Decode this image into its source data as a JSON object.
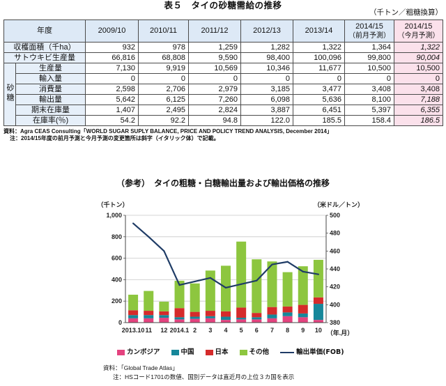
{
  "page_title": "表５　タイの砂糖需給の推移",
  "unit_note": "（千トン／粗糖換算）",
  "colors": {
    "header_bg": "#dde9f6",
    "label_bg": "#e6eff9",
    "latest_bg": "#fbe1eb",
    "border": "#4a4a4a"
  },
  "table": {
    "header_label": "年度",
    "columns": [
      {
        "year": "2009/10"
      },
      {
        "year": "2010/11"
      },
      {
        "year": "2011/12"
      },
      {
        "year": "2012/13"
      },
      {
        "year": "2013/14"
      },
      {
        "year": "2014/15",
        "sub": "（前月予測）"
      },
      {
        "year": "2014/15",
        "sub": "（今月予測）"
      }
    ],
    "rows": [
      {
        "label": "収穫面積（千ha）",
        "values": [
          "932",
          "978",
          "1,259",
          "1,282",
          "1,322",
          "1,364",
          "1,322"
        ],
        "latest_italic": true
      },
      {
        "label": "サトウキビ生産量",
        "values": [
          "66,816",
          "68,808",
          "9,590",
          "98,400",
          "100,096",
          "99,800",
          "90,004"
        ],
        "latest_italic": true
      }
    ],
    "group_label": "砂糖",
    "sugar_rows": [
      {
        "label": "生産量",
        "values": [
          "7,130",
          "9,919",
          "10,569",
          "10,346",
          "11,677",
          "10,500",
          "10,500"
        ],
        "latest_italic": false
      },
      {
        "label": "輸入量",
        "values": [
          "0",
          "0",
          "0",
          "0",
          "0",
          "0",
          "0"
        ],
        "latest_italic": false
      },
      {
        "label": "消費量",
        "values": [
          "2,598",
          "2,706",
          "2,979",
          "3,185",
          "3,477",
          "3,408",
          "3,408"
        ],
        "latest_italic": false
      },
      {
        "label": "輸出量",
        "values": [
          "5,642",
          "6,125",
          "7,260",
          "6,098",
          "5,636",
          "8,100",
          "7,188"
        ],
        "latest_italic": true
      },
      {
        "label": "期末在庫量",
        "values": [
          "1,407",
          "2,495",
          "2,824",
          "3,887",
          "6,451",
          "5,397",
          "6,355"
        ],
        "latest_italic": true
      },
      {
        "label": "在庫率(％)",
        "values": [
          "54.2",
          "92.2",
          "94.8",
          "122.0",
          "185.5",
          "158.4",
          "186.5"
        ],
        "latest_italic": true
      }
    ]
  },
  "table_notes": {
    "source": "資料：Agra CEAS Consulting「WORLD SUGAR SUPLY BALANCE, PRICE AND POLICY TREND ANALYSIS, December 2014」",
    "note": "注：2014/15年度の前月予測と今月予測の変更箇所は斜字（イタリック体）で記載。"
  },
  "chart_data": {
    "type": "bar",
    "stacked": true,
    "title": "（参考）　タイの粗糖・白糖輸出量および輸出価格の推移",
    "categories": [
      "2013.10",
      "11",
      "12",
      "2014.1",
      "2",
      "3",
      "4",
      "5",
      "6",
      "7",
      "8",
      "9",
      "10"
    ],
    "xlabel": "（年.月）",
    "ylabel": "（千トン）",
    "y2label": "（米ドル／トン）",
    "ylim": [
      0,
      1000
    ],
    "yticks": [
      "0",
      "200",
      "400",
      "600",
      "800",
      "1,000"
    ],
    "y2lim": [
      380,
      500
    ],
    "y2ticks": [
      "380",
      "400",
      "420",
      "440",
      "460",
      "480",
      "500"
    ],
    "grid": true,
    "legend": "bottom",
    "series": [
      {
        "name": "カンボジア",
        "type": "bar",
        "axis": "left",
        "color": "#e4437f",
        "values": [
          40,
          40,
          45,
          30,
          35,
          40,
          25,
          30,
          30,
          40,
          60,
          50,
          25
        ]
      },
      {
        "name": "中国",
        "type": "bar",
        "axis": "left",
        "color": "#16879a",
        "values": [
          30,
          30,
          25,
          20,
          20,
          20,
          30,
          15,
          20,
          35,
          35,
          35,
          150
        ]
      },
      {
        "name": "日本",
        "type": "bar",
        "axis": "left",
        "color": "#d52b2b",
        "values": [
          45,
          40,
          35,
          85,
          45,
          50,
          50,
          95,
          40,
          70,
          55,
          80,
          60
        ]
      },
      {
        "name": "その他",
        "type": "bar",
        "axis": "left",
        "color": "#8dc63f",
        "values": [
          145,
          185,
          90,
          255,
          265,
          375,
          425,
          615,
          500,
          425,
          320,
          360,
          350
        ]
      },
      {
        "name": "輸出単価(FOB)",
        "type": "line",
        "axis": "right",
        "color": "#1f3c66",
        "values": [
          491,
          476,
          460,
          422,
          426,
          430,
          419,
          423,
          427,
          445,
          448,
          437,
          434
        ]
      }
    ]
  },
  "chart_notes": {
    "source": "資料：「Global Trade Atlas」",
    "note": "注：HSコード1701の数値、国別データは直近月の上位３カ国を表示"
  }
}
